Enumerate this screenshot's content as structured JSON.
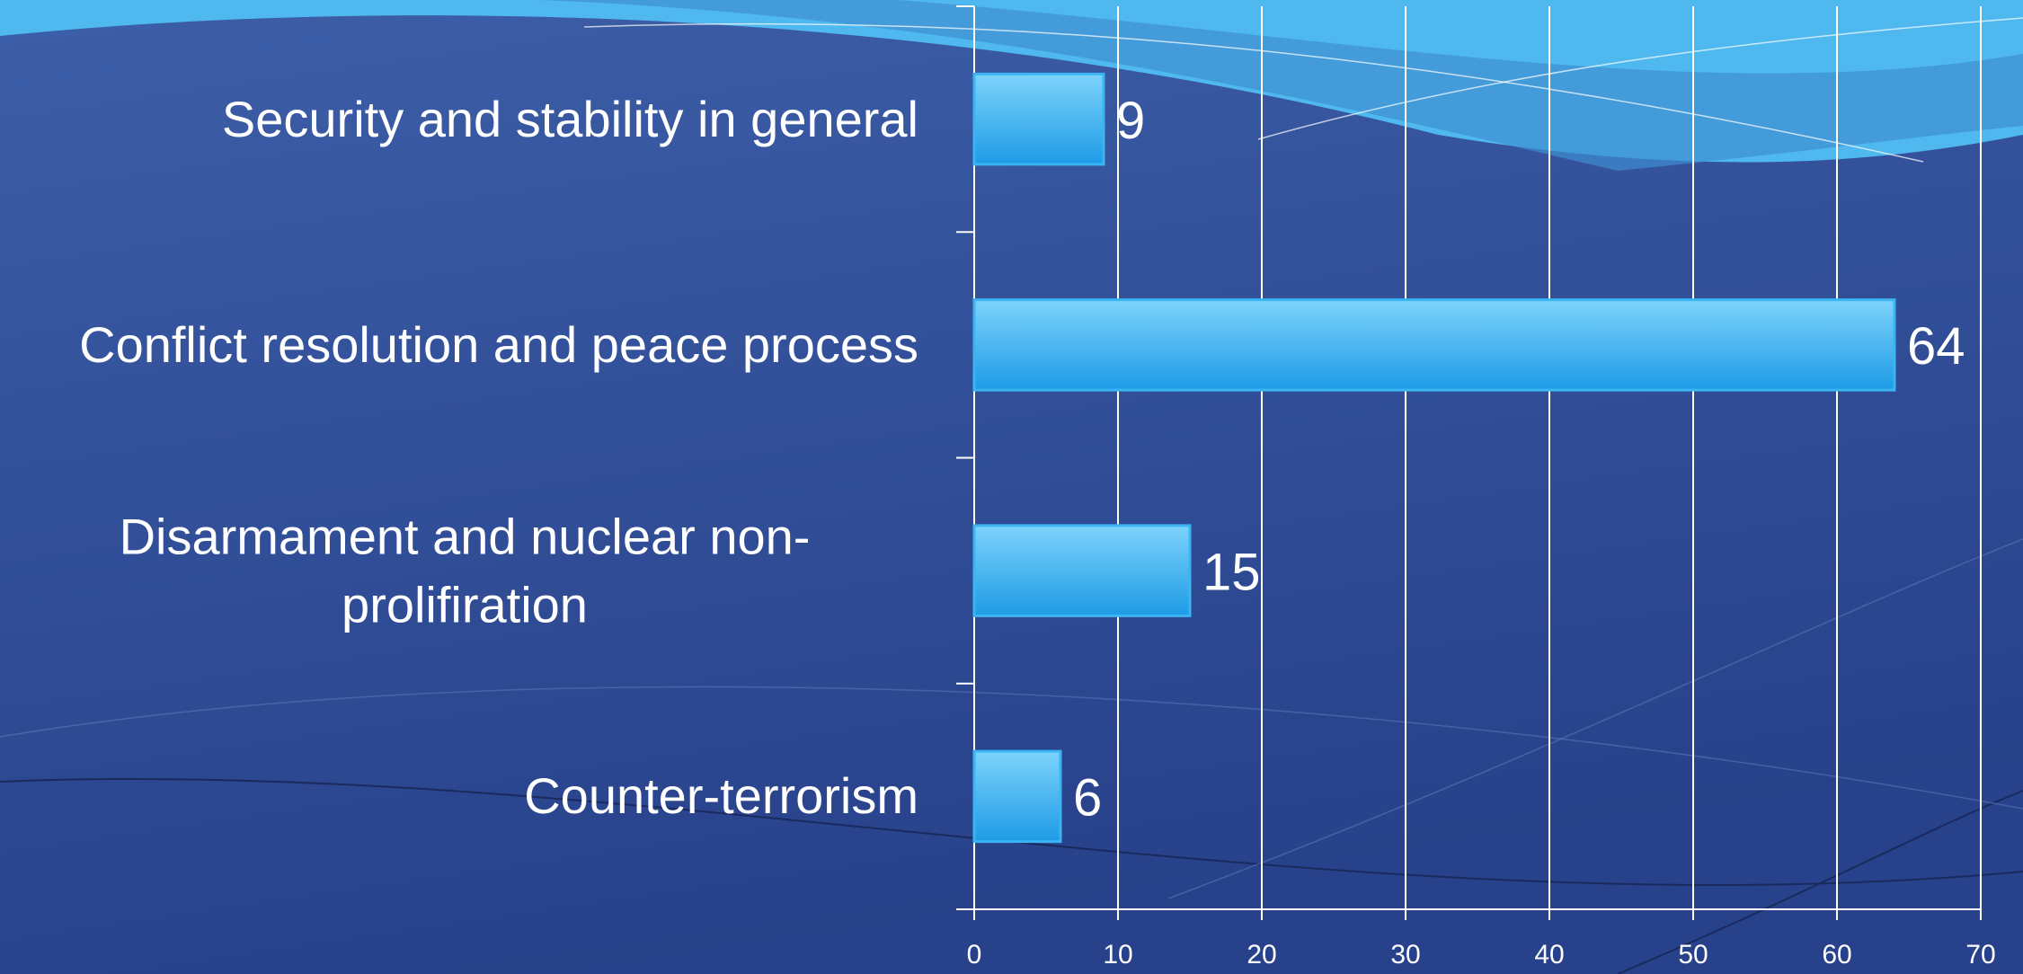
{
  "chart_data": {
    "type": "bar",
    "orientation": "horizontal",
    "categories": [
      "Security and stability in general",
      "Conflict resolution and peace process",
      "Disarmament and nuclear non-prolifiration",
      "Counter-terrorism"
    ],
    "values": [
      9,
      64,
      15,
      6
    ],
    "color": "#3bb4f2",
    "xlim": [
      0,
      70
    ],
    "xticks": [
      0,
      10,
      20,
      30,
      40,
      50,
      60,
      70
    ],
    "grid": true
  }
}
